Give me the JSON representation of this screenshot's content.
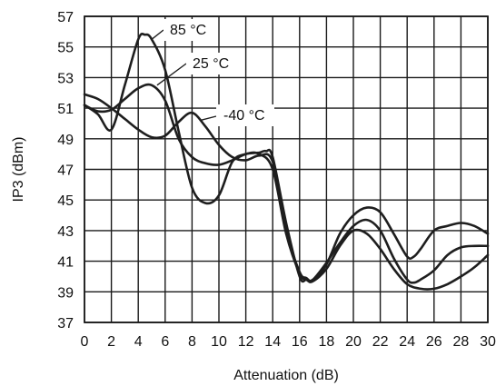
{
  "chart_data": {
    "type": "line",
    "title": "",
    "xlabel": "Attenuation (dB)",
    "ylabel": "IP3 (dBm)",
    "xlim": [
      0,
      30
    ],
    "ylim": [
      37,
      57
    ],
    "x_ticks": [
      "0",
      "2",
      "4",
      "6",
      "8",
      "10",
      "12",
      "14",
      "16",
      "18",
      "20",
      "22",
      "24",
      "26",
      "28",
      "30"
    ],
    "y_ticks": [
      "37",
      "39",
      "41",
      "43",
      "45",
      "47",
      "49",
      "51",
      "53",
      "55",
      "57"
    ],
    "grid": true,
    "series": [
      {
        "name": "85 °C",
        "x": [
          0,
          1,
          2,
          3,
          4,
          4.5,
          5,
          6,
          7,
          8,
          9,
          10,
          11,
          12,
          13,
          14,
          15,
          16,
          16.5,
          17,
          18,
          19,
          20,
          21,
          22,
          23,
          24,
          24.5,
          25,
          26,
          27,
          28,
          29,
          30
        ],
        "y": [
          51.2,
          50.6,
          49.6,
          52.5,
          55.5,
          55.8,
          55.5,
          53.5,
          49.5,
          45.8,
          44.8,
          45.3,
          47.5,
          48,
          48,
          47,
          42.8,
          40.2,
          39.8,
          39.7,
          40.8,
          42.8,
          44,
          44.5,
          44.2,
          42.8,
          41.3,
          41.3,
          41.8,
          43,
          43.3,
          43.5,
          43.3,
          42.8
        ]
      },
      {
        "name": "25 °C",
        "x": [
          0,
          1,
          2,
          3,
          4,
          5,
          6,
          7,
          8,
          9,
          10,
          11,
          12,
          13,
          13.5,
          14,
          15,
          16,
          16.5,
          17,
          18,
          19,
          20,
          21,
          22,
          23,
          24,
          24.5,
          25,
          26,
          27,
          28,
          29,
          30
        ],
        "y": [
          51.2,
          50.8,
          50.9,
          51.6,
          52.3,
          52.5,
          51.5,
          49,
          47.8,
          47.4,
          47.3,
          47.6,
          48,
          48.1,
          48.2,
          47.8,
          43.5,
          40,
          39.8,
          39.8,
          40.9,
          42.2,
          43.3,
          43.7,
          43,
          41.2,
          39.8,
          39.6,
          39.8,
          40.4,
          41.4,
          41.9,
          42,
          42
        ]
      },
      {
        "name": "-40 °C",
        "x": [
          0,
          1,
          2,
          3,
          4,
          5,
          6,
          7,
          8,
          9,
          10,
          11,
          12,
          13,
          14,
          15,
          16,
          16.5,
          17,
          18,
          19,
          20,
          21,
          22,
          23,
          24,
          25,
          26,
          27,
          28,
          29,
          30
        ],
        "y": [
          51.9,
          51.6,
          51,
          50.3,
          49.6,
          49.1,
          49.2,
          50.1,
          50.7,
          49.8,
          48.6,
          47.8,
          47.6,
          47.9,
          47.5,
          43,
          40.3,
          39.9,
          39.7,
          40.5,
          42,
          43,
          42.8,
          41.8,
          40.5,
          39.5,
          39.2,
          39.2,
          39.5,
          40,
          40.6,
          41.4
        ]
      }
    ],
    "annotations": [
      {
        "text": "85 °C",
        "series": "85 °C"
      },
      {
        "text": "25 °C",
        "series": "25 °C"
      },
      {
        "text": "-40 °C",
        "series": "-40 °C"
      }
    ]
  }
}
